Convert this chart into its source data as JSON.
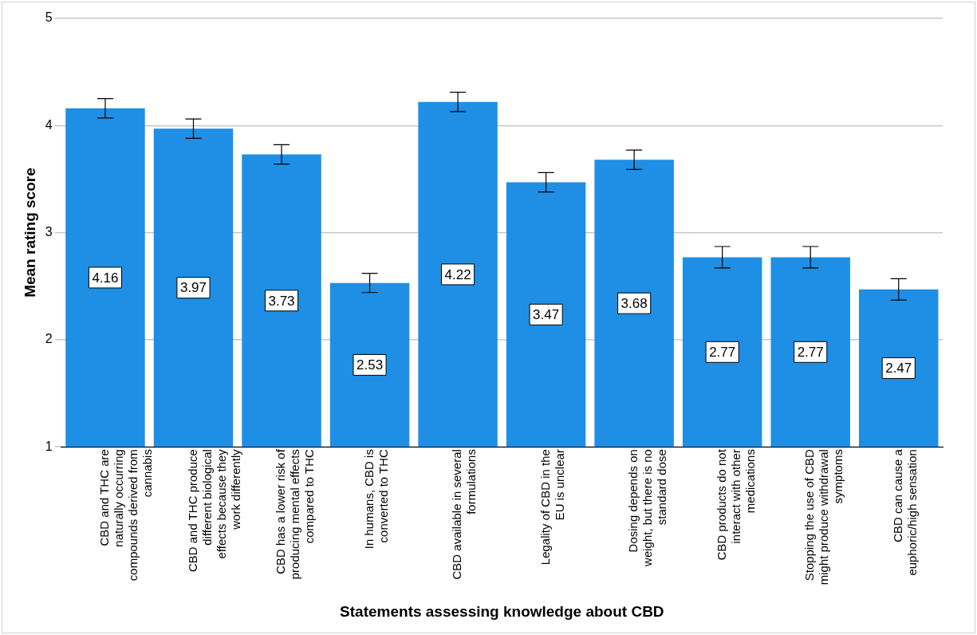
{
  "chart_data": {
    "type": "bar",
    "xlabel": "Statements assessing knowledge about CBD",
    "ylabel": "Mean rating score",
    "categories": [
      "CBD and THC are naturally occurring compounds derived from cannabis",
      "CBD and THC produce different biological effects because they work differently",
      "CBD has a lower risk of producing mental effects compared to THC",
      "In humans, CBD is converted to THC",
      "CBD available in several formulations",
      "Legality of CBD in the EU is unclear",
      "Dosing depends on weight, but there is no standard dose",
      "CBD products do not interact with other medications",
      "Stopping the use of CBD might produce withdrawal symptoms",
      "CBD can cause a euphoric/high sensation"
    ],
    "values": [
      4.16,
      3.97,
      3.73,
      2.53,
      4.22,
      3.47,
      3.68,
      2.77,
      2.77,
      2.47
    ],
    "errors": [
      0.09,
      0.09,
      0.09,
      0.09,
      0.09,
      0.09,
      0.09,
      0.1,
      0.1,
      0.1
    ],
    "color": "#1f8fe5",
    "ylim": [
      1,
      5
    ],
    "yticks": [
      1,
      2,
      3,
      4,
      5
    ],
    "grid": "y",
    "data_labels": true,
    "legend": false
  }
}
